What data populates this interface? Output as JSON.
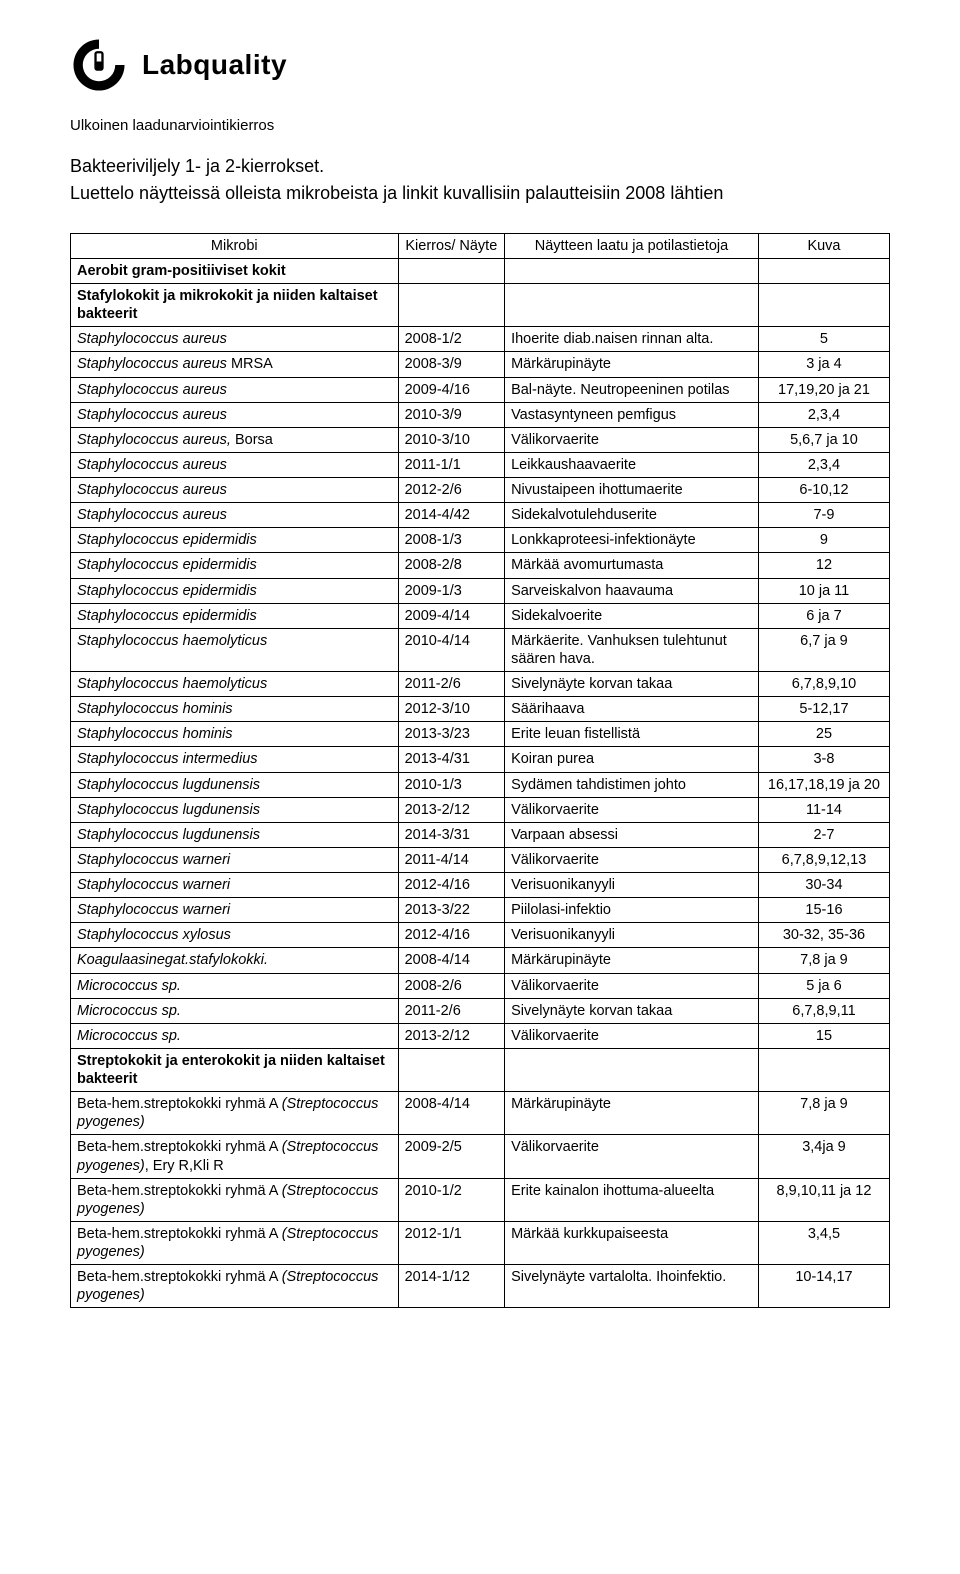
{
  "brand": "Labquality",
  "subtitle": "Ulkoinen laadunarviointikierros",
  "title": "Bakteeriviljely 1- ja 2-kierrokset.",
  "description": "Luettelo näytteissä olleista mikrobeista ja linkit kuvallisiin palautteisiin 2008 lähtien",
  "headers": {
    "c1": "Mikrobi",
    "c2": "Kierros/ Näyte",
    "c3": "Näytteen laatu ja potilastietoja",
    "c4": "Kuva"
  },
  "colors": {
    "text": "#000000",
    "background": "#ffffff",
    "border": "#000000"
  },
  "rows": [
    {
      "type": "section",
      "c1": "Aerobit gram-positiiviset kokit"
    },
    {
      "type": "section",
      "c1": "Stafylokokit ja mikrokokit ja niiden kaltaiset bakteerit"
    },
    {
      "type": "data",
      "c1": "Staphylococcus aureus",
      "c2": "2008-1/2",
      "c3": "Ihoerite diab.naisen rinnan alta.",
      "c4": "5"
    },
    {
      "type": "data",
      "c1_i": "Staphylococcus aureus",
      "c1_r": " MRSA",
      "c2": "2008-3/9",
      "c3": "Märkärupinäyte",
      "c4": "3 ja 4"
    },
    {
      "type": "data",
      "c1": "Staphylococcus aureus",
      "c2": "2009-4/16",
      "c3": "Bal-näyte. Neutropeeninen potilas",
      "c4": "17,19,20 ja 21"
    },
    {
      "type": "data",
      "c1": "Staphylococcus aureus",
      "c2": "2010-3/9",
      "c3": "Vastasyntyneen pemfigus",
      "c4": "2,3,4"
    },
    {
      "type": "data",
      "c1_i": "Staphylococcus aureus,",
      "c1_r": " Borsa",
      "c2": "2010-3/10",
      "c3": "Välikorvaerite",
      "c4": "5,6,7 ja 10"
    },
    {
      "type": "data",
      "c1": "Staphylococcus aureus",
      "c2": "2011-1/1",
      "c3": "Leikkaushaavaerite",
      "c4": "2,3,4"
    },
    {
      "type": "data",
      "c1": "Staphylococcus aureus",
      "c2": "2012-2/6",
      "c3": "Nivustaipeen ihottumaerite",
      "c4": "6-10,12"
    },
    {
      "type": "data",
      "c1": "Staphylococcus aureus",
      "c2": "2014-4/42",
      "c3": "Sidekalvotulehduserite",
      "c4": "7-9"
    },
    {
      "type": "data",
      "c1": "Staphylococcus epidermidis",
      "c2": "2008-1/3",
      "c3": "Lonkkaproteesi-infektionäyte",
      "c4": "9"
    },
    {
      "type": "data",
      "c1": "Staphylococcus epidermidis",
      "c2": "2008-2/8",
      "c3": "Märkää avomurtumasta",
      "c4": "12"
    },
    {
      "type": "data",
      "c1": "Staphylococcus epidermidis",
      "c2": "2009-1/3",
      "c3": "Sarveiskalvon haavauma",
      "c4": "10 ja 11"
    },
    {
      "type": "data",
      "c1": "Staphylococcus epidermidis",
      "c2": "2009-4/14",
      "c3": "Sidekalvoerite",
      "c4": "6 ja 7"
    },
    {
      "type": "data",
      "c1": "Staphylococcus haemolyticus",
      "c2": "2010-4/14",
      "c3": "Märkäerite. Vanhuksen tulehtunut säären hava.",
      "c4": "6,7 ja 9"
    },
    {
      "type": "data",
      "c1": "Staphylococcus haemolyticus",
      "c2": "2011-2/6",
      "c3": "Sivelynäyte korvan takaa",
      "c4": "6,7,8,9,10"
    },
    {
      "type": "data",
      "c1": "Staphylococcus hominis",
      "c2": "2012-3/10",
      "c3": "Säärihaava",
      "c4": "5-12,17"
    },
    {
      "type": "data",
      "c1": "Staphylococcus hominis",
      "c2": "2013-3/23",
      "c3": "Erite leuan fistellistä",
      "c4": "25"
    },
    {
      "type": "data",
      "c1": "Staphylococcus intermedius",
      "c2": "2013-4/31",
      "c3": "Koiran purea",
      "c4": "3-8"
    },
    {
      "type": "data",
      "c1": "Staphylococcus lugdunensis",
      "c2": "2010-1/3",
      "c3": "Sydämen tahdistimen johto",
      "c4": "16,17,18,19 ja 20"
    },
    {
      "type": "data",
      "c1": "Staphylococcus lugdunensis",
      "c2": "2013-2/12",
      "c3": "Välikorvaerite",
      "c4": "11-14"
    },
    {
      "type": "data",
      "c1": "Staphylococcus lugdunensis",
      "c2": "2014-3/31",
      "c3": "Varpaan absessi",
      "c4": "2-7"
    },
    {
      "type": "data",
      "c1": "Staphylococcus warneri",
      "c2": "2011-4/14",
      "c3": "Välikorvaerite",
      "c4": "6,7,8,9,12,13"
    },
    {
      "type": "data",
      "c1": "Staphylococcus warneri",
      "c2": "2012-4/16",
      "c3": "Verisuonikanyyli",
      "c4": "30-34"
    },
    {
      "type": "data",
      "c1": "Staphylococcus warneri",
      "c2": "2013-3/22",
      "c3": "Piilolasi-infektio",
      "c4": "15-16"
    },
    {
      "type": "data",
      "c1": "Staphylococcus xylosus",
      "c2": "2012-4/16",
      "c3": "Verisuonikanyyli",
      "c4": "30-32, 35-36"
    },
    {
      "type": "data",
      "c1": "Koagulaasinegat.stafylokokki.",
      "c2": "2008-4/14",
      "c3": "Märkärupinäyte",
      "c4": "7,8 ja 9"
    },
    {
      "type": "data",
      "c1": "Micrococcus sp.",
      "c2": "2008-2/6",
      "c3": "Välikorvaerite",
      "c4": "5 ja 6"
    },
    {
      "type": "data",
      "c1": "Micrococcus sp.",
      "c2": "2011-2/6",
      "c3": "Sivelynäyte korvan takaa",
      "c4": "6,7,8,9,11"
    },
    {
      "type": "data",
      "c1": "Micrococcus sp.",
      "c2": "2013-2/12",
      "c3": "Välikorvaerite",
      "c4": "15"
    },
    {
      "type": "section",
      "c1": "Streptokokit ja enterokokit ja niiden kaltaiset bakteerit"
    },
    {
      "type": "data",
      "c1_r": "Beta-hem.streptokokki ryhmä A ",
      "c1_i": "(Streptococcus pyogenes)",
      "c1_order": "ri",
      "c2": "2008-4/14",
      "c3": "Märkärupinäyte",
      "c4": "7,8 ja 9"
    },
    {
      "type": "data",
      "c1_r": "Beta-hem.streptokokki ryhmä A ",
      "c1_i": "(Streptococcus pyogenes)",
      "c1_tail": ", Ery R,Kli R",
      "c1_order": "ri",
      "c2": "2009-2/5",
      "c3": "Välikorvaerite",
      "c4": "3,4ja 9"
    },
    {
      "type": "data",
      "c1_r": "Beta-hem.streptokokki ryhmä A ",
      "c1_i": "(Streptococcus pyogenes)",
      "c1_order": "ri",
      "c2": "2010-1/2",
      "c3": "Erite kainalon ihottuma-alueelta",
      "c4": "8,9,10,11 ja 12"
    },
    {
      "type": "data",
      "c1_r": "Beta-hem.streptokokki ryhmä A ",
      "c1_i": "(Streptococcus pyogenes)",
      "c1_order": "ri",
      "c2": "2012-1/1",
      "c3": "Märkää kurkkupaiseesta",
      "c4": "3,4,5"
    },
    {
      "type": "data",
      "c1_r": "Beta-hem.streptokokki ryhmä A ",
      "c1_i": "(Streptococcus pyogenes)",
      "c1_order": "ri",
      "c2": "2014-1/12",
      "c3": "Sivelynäyte vartalolta. Ihoinfektio.",
      "c4": "10-14,17"
    }
  ]
}
